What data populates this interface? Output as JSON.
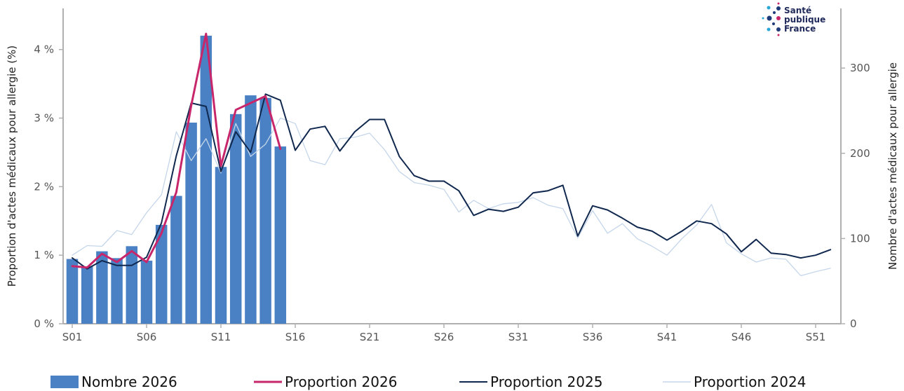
{
  "chart_data": {
    "type": "bar",
    "xlabel": "",
    "ylabel_left": "Proportion d'actes médicaux pour allergie (%)",
    "ylabel_right": "Nombre d'actes médicaux pour allergie",
    "x_ticks": [
      "S01",
      "S06",
      "S11",
      "S16",
      "S21",
      "S26",
      "S31",
      "S36",
      "S41",
      "S46",
      "S51"
    ],
    "y_left_ticks": [
      "0 %",
      "1 %",
      "2 %",
      "3 %",
      "4 %"
    ],
    "y_right_ticks": [
      "0",
      "100",
      "200",
      "300"
    ],
    "y_left_range": [
      0,
      4.6
    ],
    "y_right_range": [
      0,
      370
    ],
    "week_count": 52,
    "legend_position": "bottom",
    "grid": false,
    "series": [
      {
        "name": "Nombre 2026",
        "type": "bar",
        "axis": "right",
        "color": "#4a81c4",
        "values": [
          76,
          67,
          85,
          77,
          91,
          74,
          116,
          150,
          236,
          338,
          184,
          246,
          268,
          265,
          208
        ]
      },
      {
        "name": "Proportion 2026",
        "type": "line",
        "axis": "left",
        "color": "#c8266a",
        "values": [
          0.84,
          0.82,
          1.02,
          0.9,
          1.06,
          0.9,
          1.32,
          1.92,
          3.18,
          4.23,
          2.3,
          3.12,
          3.22,
          3.32,
          2.55
        ]
      },
      {
        "name": "Proportion 2025",
        "type": "line",
        "axis": "left",
        "color": "#10284e",
        "values": [
          0.96,
          0.8,
          0.92,
          0.85,
          0.85,
          0.97,
          1.47,
          2.45,
          3.22,
          3.17,
          2.22,
          2.8,
          2.5,
          3.35,
          3.26,
          2.53,
          2.84,
          2.88,
          2.52,
          2.8,
          2.98,
          2.98,
          2.44,
          2.16,
          2.08,
          2.08,
          1.94,
          1.58,
          1.67,
          1.64,
          1.7,
          1.91,
          1.94,
          2.02,
          1.28,
          1.72,
          1.66,
          1.54,
          1.41,
          1.35,
          1.22,
          1.35,
          1.5,
          1.46,
          1.31,
          1.05,
          1.23,
          1.03,
          1.01,
          0.96,
          1.0,
          1.08
        ]
      },
      {
        "name": "Proportion 2024",
        "type": "line",
        "axis": "left",
        "color": "#c5d6ea",
        "values": [
          1.0,
          1.14,
          1.13,
          1.36,
          1.3,
          1.62,
          1.88,
          2.8,
          2.38,
          2.7,
          2.2,
          2.92,
          2.44,
          2.62,
          3.0,
          2.92,
          2.38,
          2.32,
          2.7,
          2.72,
          2.78,
          2.54,
          2.22,
          2.06,
          2.02,
          1.96,
          1.63,
          1.8,
          1.68,
          1.75,
          1.77,
          1.84,
          1.73,
          1.68,
          1.25,
          1.65,
          1.32,
          1.46,
          1.24,
          1.13,
          1.0,
          1.24,
          1.44,
          1.74,
          1.18,
          1.02,
          0.9,
          0.96,
          0.94,
          0.7,
          0.76,
          0.81
        ]
      }
    ]
  },
  "logo": {
    "line1": "Santé",
    "line2": "publique",
    "line3": "France"
  }
}
